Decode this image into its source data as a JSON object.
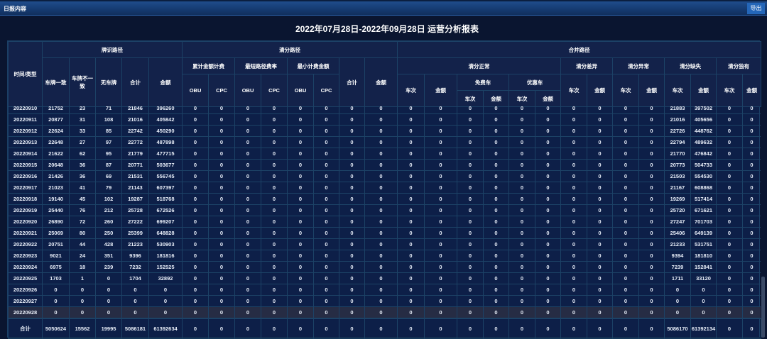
{
  "topbar": {
    "title": "日报内容",
    "export_label": "导出"
  },
  "report_title": "2022年07月28日-2022年09月28日 运营分析报表",
  "headers": {
    "time_type": "时间/类型",
    "plate_path": "牌识路径",
    "plate_match": "车牌一致",
    "plate_mismatch": "车牌不一致",
    "no_plate": "无车牌",
    "total": "合计",
    "amount": "金额",
    "clear_path": "清分路径",
    "cum_amount": "累计金额计费",
    "shortest_rate": "最短路径费率",
    "min_amount": "最小计费金额",
    "obu": "OBU",
    "cpc": "CPC",
    "merged_path": "合并路径",
    "clear_normal": "清分正常",
    "free_car": "免费车",
    "discount_car": "优惠车",
    "clear_diff": "清分差异",
    "clear_abnormal": "清分异常",
    "clear_missing": "清分缺失",
    "clear_unique": "清分独有",
    "trips": "车次"
  },
  "rows": [
    [
      "20220910",
      "21752",
      "23",
      "71",
      "21846",
      "396260",
      "0",
      "0",
      "0",
      "0",
      "0",
      "0",
      "0",
      "0",
      "0",
      "0",
      "0",
      "0",
      "0",
      "0",
      "0",
      "0",
      "0",
      "0",
      "21883",
      "397502",
      "0",
      "0"
    ],
    [
      "20220911",
      "20877",
      "31",
      "108",
      "21016",
      "405842",
      "0",
      "0",
      "0",
      "0",
      "0",
      "0",
      "0",
      "0",
      "0",
      "0",
      "0",
      "0",
      "0",
      "0",
      "0",
      "0",
      "0",
      "0",
      "21016",
      "405656",
      "0",
      "0"
    ],
    [
      "20220912",
      "22624",
      "33",
      "85",
      "22742",
      "450290",
      "0",
      "0",
      "0",
      "0",
      "0",
      "0",
      "0",
      "0",
      "0",
      "0",
      "0",
      "0",
      "0",
      "0",
      "0",
      "0",
      "0",
      "0",
      "22726",
      "448762",
      "0",
      "0"
    ],
    [
      "20220913",
      "22648",
      "27",
      "97",
      "22772",
      "487898",
      "0",
      "0",
      "0",
      "0",
      "0",
      "0",
      "0",
      "0",
      "0",
      "0",
      "0",
      "0",
      "0",
      "0",
      "0",
      "0",
      "0",
      "0",
      "22794",
      "489632",
      "0",
      "0"
    ],
    [
      "20220914",
      "21622",
      "62",
      "95",
      "21779",
      "477715",
      "0",
      "0",
      "0",
      "0",
      "0",
      "0",
      "0",
      "0",
      "0",
      "0",
      "0",
      "0",
      "0",
      "0",
      "0",
      "0",
      "0",
      "0",
      "21770",
      "476842",
      "0",
      "0"
    ],
    [
      "20220915",
      "20648",
      "36",
      "87",
      "20771",
      "503677",
      "0",
      "0",
      "0",
      "0",
      "0",
      "0",
      "0",
      "0",
      "0",
      "0",
      "0",
      "0",
      "0",
      "0",
      "0",
      "0",
      "0",
      "0",
      "20773",
      "504733",
      "0",
      "0"
    ],
    [
      "20220916",
      "21426",
      "36",
      "69",
      "21531",
      "556745",
      "0",
      "0",
      "0",
      "0",
      "0",
      "0",
      "0",
      "0",
      "0",
      "0",
      "0",
      "0",
      "0",
      "0",
      "0",
      "0",
      "0",
      "0",
      "21503",
      "554530",
      "0",
      "0"
    ],
    [
      "20220917",
      "21023",
      "41",
      "79",
      "21143",
      "607397",
      "0",
      "0",
      "0",
      "0",
      "0",
      "0",
      "0",
      "0",
      "0",
      "0",
      "0",
      "0",
      "0",
      "0",
      "0",
      "0",
      "0",
      "0",
      "21167",
      "608868",
      "0",
      "0"
    ],
    [
      "20220918",
      "19140",
      "45",
      "102",
      "19287",
      "518768",
      "0",
      "0",
      "0",
      "0",
      "0",
      "0",
      "0",
      "0",
      "0",
      "0",
      "0",
      "0",
      "0",
      "0",
      "0",
      "0",
      "0",
      "0",
      "19269",
      "517414",
      "0",
      "0"
    ],
    [
      "20220919",
      "25440",
      "76",
      "212",
      "25728",
      "672526",
      "0",
      "0",
      "0",
      "0",
      "0",
      "0",
      "0",
      "0",
      "0",
      "0",
      "0",
      "0",
      "0",
      "0",
      "0",
      "0",
      "0",
      "0",
      "25720",
      "671621",
      "0",
      "0"
    ],
    [
      "20220920",
      "26890",
      "72",
      "260",
      "27222",
      "699207",
      "0",
      "0",
      "0",
      "0",
      "0",
      "0",
      "0",
      "0",
      "0",
      "0",
      "0",
      "0",
      "0",
      "0",
      "0",
      "0",
      "0",
      "0",
      "27247",
      "701703",
      "0",
      "0"
    ],
    [
      "20220921",
      "25069",
      "80",
      "250",
      "25399",
      "648828",
      "0",
      "0",
      "0",
      "0",
      "0",
      "0",
      "0",
      "0",
      "0",
      "0",
      "0",
      "0",
      "0",
      "0",
      "0",
      "0",
      "0",
      "0",
      "25406",
      "649139",
      "0",
      "0"
    ],
    [
      "20220922",
      "20751",
      "44",
      "428",
      "21223",
      "530903",
      "0",
      "0",
      "0",
      "0",
      "0",
      "0",
      "0",
      "0",
      "0",
      "0",
      "0",
      "0",
      "0",
      "0",
      "0",
      "0",
      "0",
      "0",
      "21233",
      "531751",
      "0",
      "0"
    ],
    [
      "20220923",
      "9021",
      "24",
      "351",
      "9396",
      "181816",
      "0",
      "0",
      "0",
      "0",
      "0",
      "0",
      "0",
      "0",
      "0",
      "0",
      "0",
      "0",
      "0",
      "0",
      "0",
      "0",
      "0",
      "0",
      "9394",
      "181810",
      "0",
      "0"
    ],
    [
      "20220924",
      "6975",
      "18",
      "239",
      "7232",
      "152525",
      "0",
      "0",
      "0",
      "0",
      "0",
      "0",
      "0",
      "0",
      "0",
      "0",
      "0",
      "0",
      "0",
      "0",
      "0",
      "0",
      "0",
      "0",
      "7239",
      "152841",
      "0",
      "0"
    ],
    [
      "20220925",
      "1703",
      "1",
      "0",
      "1704",
      "32892",
      "0",
      "0",
      "0",
      "0",
      "0",
      "0",
      "0",
      "0",
      "0",
      "0",
      "0",
      "0",
      "0",
      "0",
      "0",
      "0",
      "0",
      "0",
      "1711",
      "33120",
      "0",
      "0"
    ],
    [
      "20220926",
      "0",
      "0",
      "0",
      "0",
      "0",
      "0",
      "0",
      "0",
      "0",
      "0",
      "0",
      "0",
      "0",
      "0",
      "0",
      "0",
      "0",
      "0",
      "0",
      "0",
      "0",
      "0",
      "0",
      "0",
      "0",
      "0",
      "0"
    ],
    [
      "20220927",
      "0",
      "0",
      "0",
      "0",
      "0",
      "0",
      "0",
      "0",
      "0",
      "0",
      "0",
      "0",
      "0",
      "0",
      "0",
      "0",
      "0",
      "0",
      "0",
      "0",
      "0",
      "0",
      "0",
      "0",
      "0",
      "0",
      "0"
    ],
    [
      "20220928",
      "0",
      "0",
      "0",
      "0",
      "0",
      "0",
      "0",
      "0",
      "0",
      "0",
      "0",
      "0",
      "0",
      "0",
      "0",
      "0",
      "0",
      "0",
      "0",
      "0",
      "0",
      "0",
      "0",
      "0",
      "0",
      "0",
      "0"
    ]
  ],
  "total_row": [
    "合计",
    "5050624",
    "15562",
    "19995",
    "5086181",
    "61392634",
    "0",
    "0",
    "0",
    "0",
    "0",
    "0",
    "0",
    "0",
    "0",
    "0",
    "0",
    "0",
    "0",
    "0",
    "0",
    "0",
    "0",
    "0",
    "5086170",
    "61392134",
    "0",
    "0"
  ],
  "highlight_row": "20220928",
  "colors": {
    "background": "#0a1530",
    "table": "#0d1f48",
    "header": "#13224a",
    "border": "#1c4266",
    "accent": "#2466b8",
    "highlight": "#262c44"
  }
}
